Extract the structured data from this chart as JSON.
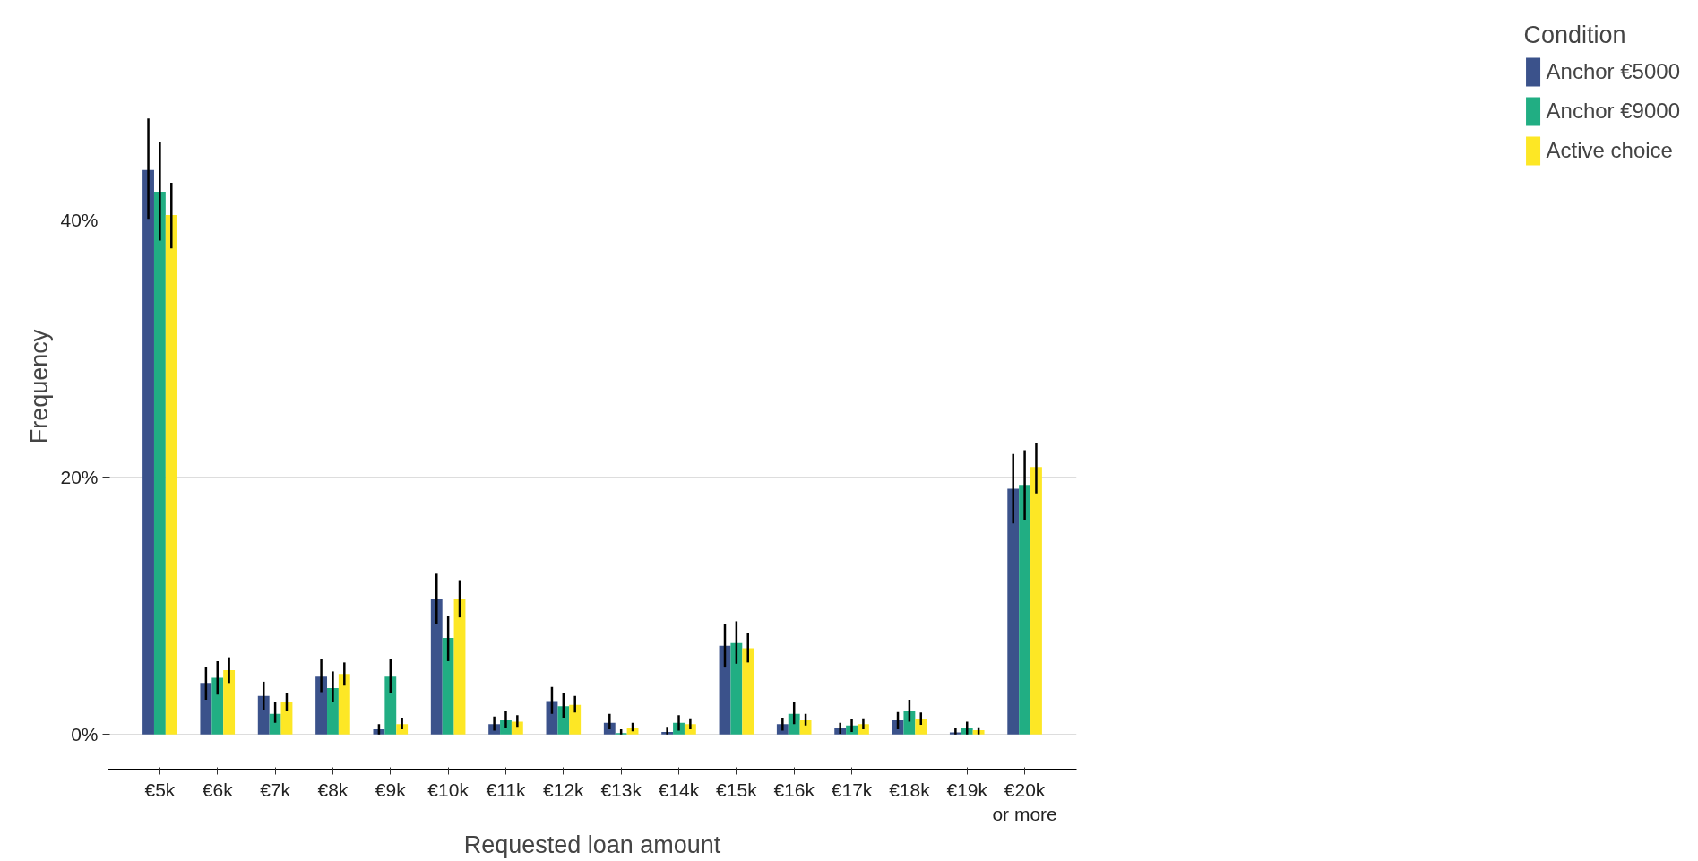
{
  "chart_data": {
    "type": "bar",
    "xlabel": "Requested loan amount",
    "ylabel": "Frequency",
    "legend_title": "Condition",
    "legend": "right",
    "grid": "y",
    "categories": [
      "€5k",
      "€6k",
      "€7k",
      "€8k",
      "€9k",
      "€10k",
      "€11k",
      "€12k",
      "€13k",
      "€14k",
      "€15k",
      "€16k",
      "€17k",
      "€18k",
      "€19k",
      "€20k\nor more"
    ],
    "ylim": [
      -2.7,
      56.8
    ],
    "yticks": [
      {
        "value": 0,
        "label": "0%"
      },
      {
        "value": 20,
        "label": "20%"
      },
      {
        "value": 40,
        "label": "40%"
      }
    ],
    "series": [
      {
        "name": "Anchor €5000",
        "color": "#3b528b",
        "values": [
          43.9,
          4.0,
          3.0,
          4.5,
          0.4,
          10.5,
          0.8,
          2.6,
          0.9,
          0.2,
          6.9,
          0.8,
          0.5,
          1.1,
          0.16,
          19.1
        ],
        "errors": [
          [
            40.1,
            47.9
          ],
          [
            2.7,
            5.2
          ],
          [
            1.9,
            4.1
          ],
          [
            3.3,
            5.9
          ],
          [
            0,
            0.8
          ],
          [
            8.6,
            12.5
          ],
          [
            0.3,
            1.4
          ],
          [
            1.6,
            3.7
          ],
          [
            0.4,
            1.6
          ],
          [
            0,
            0.6
          ],
          [
            5.2,
            8.6
          ],
          [
            0.3,
            1.3
          ],
          [
            0.05,
            0.9
          ],
          [
            0.4,
            1.75
          ],
          [
            0,
            0.5
          ],
          [
            16.4,
            21.8
          ]
        ]
      },
      {
        "name": "Anchor €9000",
        "color": "#21ae83",
        "values": [
          42.2,
          4.4,
          1.6,
          3.6,
          4.5,
          7.5,
          1.1,
          2.2,
          0.1,
          0.9,
          7.1,
          1.6,
          0.7,
          1.8,
          0.5,
          19.4
        ],
        "errors": [
          [
            38.4,
            46.1
          ],
          [
            3.1,
            5.7
          ],
          [
            0.9,
            2.5
          ],
          [
            2.5,
            4.9
          ],
          [
            3.2,
            5.9
          ],
          [
            5.7,
            9.2
          ],
          [
            0.5,
            1.8
          ],
          [
            1.3,
            3.2
          ],
          [
            0,
            0.4
          ],
          [
            0.3,
            1.5
          ],
          [
            5.5,
            8.8
          ],
          [
            0.8,
            2.5
          ],
          [
            0.2,
            1.2
          ],
          [
            1.0,
            2.7
          ],
          [
            0,
            1.0
          ],
          [
            16.7,
            22.1
          ]
        ]
      },
      {
        "name": "Active choice",
        "color": "#fde725",
        "values": [
          40.4,
          5.0,
          2.5,
          4.7,
          0.8,
          10.5,
          1.0,
          2.3,
          0.5,
          0.8,
          6.7,
          1.1,
          0.8,
          1.2,
          0.33,
          20.8
        ],
        "errors": [
          [
            37.8,
            42.9
          ],
          [
            4.0,
            6.0
          ],
          [
            1.8,
            3.2
          ],
          [
            3.8,
            5.6
          ],
          [
            0.4,
            1.3
          ],
          [
            9.1,
            12.0
          ],
          [
            0.6,
            1.5
          ],
          [
            1.7,
            3.0
          ],
          [
            0.25,
            0.9
          ],
          [
            0.4,
            1.25
          ],
          [
            5.6,
            7.9
          ],
          [
            0.7,
            1.6
          ],
          [
            0.4,
            1.25
          ],
          [
            0.75,
            1.7
          ],
          [
            0,
            0.56
          ],
          [
            18.75,
            22.7
          ]
        ]
      }
    ]
  }
}
